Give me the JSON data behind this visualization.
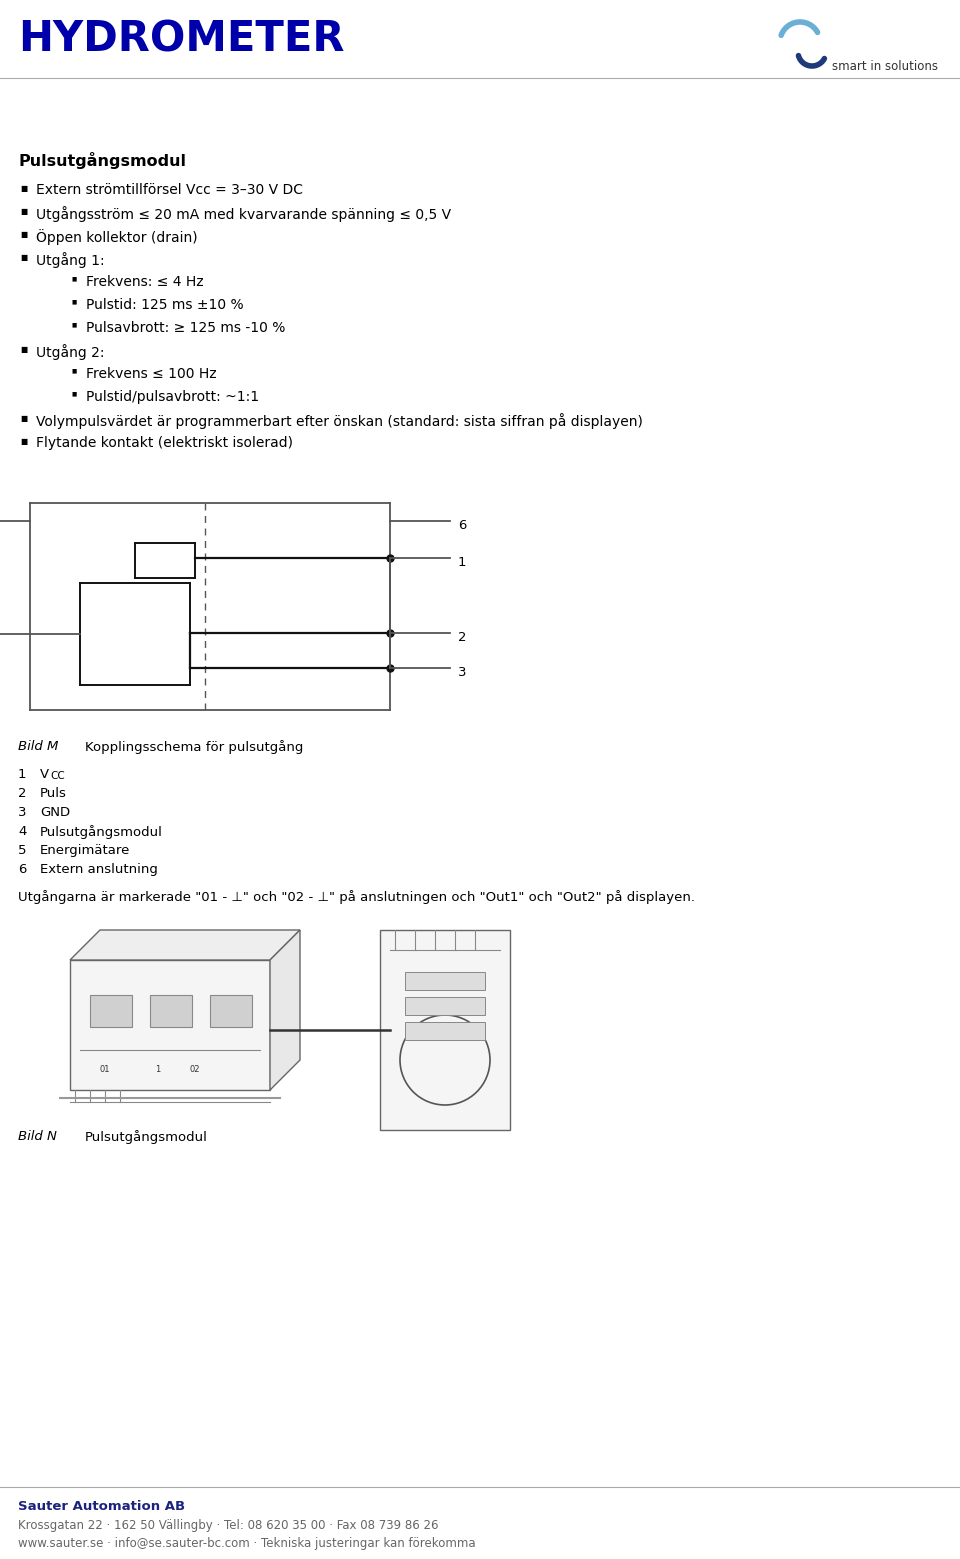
{
  "bg_color": "#ffffff",
  "header_hydrometer_color": "#0000AA",
  "header_hydrometer_text": "HYDROMETER",
  "header_hydrometer_fontsize": 30,
  "smart_text": "smart in solutions",
  "title": "Pulsutgångsmodul",
  "bullets": [
    "Extern strömtillförsel Vcc = 3–30 V DC",
    "Utgångsström ≤ 20 mA med kvarvarande spänning ≤ 0,5 V",
    "Öppen kollektor (drain)",
    "Utgång 1:",
    "Frekvens: ≤ 4 Hz",
    "Pulstid: 125 ms ±10 %",
    "Pulsavbrott: ≥ 125 ms -10 %",
    "Utgång 2:",
    "Frekvens ≤ 100 Hz",
    "Pulstid/pulsavbrott: ~1:1",
    "Volympulsvärdet är programmerbart efter önskan (standard: sista siffran på displayen)",
    "Flytande kontakt (elektriskt isolerad)"
  ],
  "bullet_indents": [
    0,
    0,
    0,
    0,
    1,
    1,
    1,
    0,
    1,
    1,
    0,
    0
  ],
  "bild_m_label": "Bild M",
  "bild_m_caption": "Kopplingsschema för pulsutgång",
  "legend_items": [
    [
      "1",
      "V",
      "CC"
    ],
    [
      "2",
      "Puls",
      ""
    ],
    [
      "3",
      "GND",
      ""
    ],
    [
      "4",
      "Pulsutgångsmodul",
      ""
    ],
    [
      "5",
      "Energimätare",
      ""
    ],
    [
      "6",
      "Extern anslutning",
      ""
    ]
  ],
  "extra_text": "Utgångarna är markerade \"01 - ⊥\" och \"02 - ⊥\" på anslutningen och \"Out1\" och \"Out2\" på displayen.",
  "bild_n_label": "Bild N",
  "bild_n_caption": "Pulsutgångsmodul",
  "footer_company": "Sauter Automation AB",
  "footer_address": "Krossgatan 22 · 162 50 Vällingby · Tel: 08 620 35 00 · Fax 08 739 86 26",
  "footer_web": "www.sauter.se · info@se.sauter-bc.com · Tekniska justeringar kan förekomma",
  "text_color": "#000000",
  "gray_color": "#555555",
  "line_color": "#555555",
  "dark_line_color": "#111111"
}
